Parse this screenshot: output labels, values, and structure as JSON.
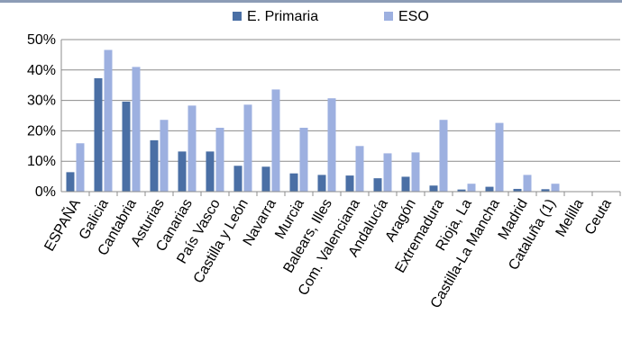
{
  "chart_data": {
    "type": "bar",
    "title": "",
    "xlabel": "",
    "ylabel": "",
    "ylim": [
      0,
      50
    ],
    "y_ticks": [
      "0%",
      "10%",
      "20%",
      "30%",
      "40%",
      "50%"
    ],
    "y_tick_values": [
      0,
      10,
      20,
      30,
      40,
      50
    ],
    "grid": true,
    "legend_position": "top",
    "categories": [
      "ESPAÑA",
      "Galicia",
      "Cantabria",
      "Asturias",
      "Canarias",
      "País Vasco",
      "Castilla y León",
      "Navarra",
      "Murcia",
      "Balears, Illes",
      "Com. Valenciana",
      "Andalucía",
      "Aragón",
      "Extremadura",
      "Rioja, La",
      "Castilla-La Mancha",
      "Madrid",
      "Cataluña (1)",
      "Melilla",
      "Ceuta"
    ],
    "series": [
      {
        "name": "E. Primaria",
        "color": "#4A6FA5",
        "values": [
          6.4,
          37.3,
          29.6,
          16.9,
          13.2,
          13.2,
          8.5,
          8.2,
          6.0,
          5.5,
          5.3,
          4.4,
          4.9,
          2.0,
          0.7,
          1.6,
          0.9,
          0.8,
          0,
          0
        ]
      },
      {
        "name": "ESO",
        "color": "#9DB0E0",
        "values": [
          15.9,
          46.6,
          41.0,
          23.6,
          28.3,
          21.0,
          28.6,
          33.6,
          21.0,
          30.7,
          15.0,
          12.6,
          12.9,
          23.6,
          2.6,
          22.6,
          5.5,
          2.6,
          0,
          0
        ]
      }
    ]
  },
  "colors": {
    "grid": "#8C8C8C",
    "axis": "#8C8C8C",
    "title": "#1F3864"
  }
}
